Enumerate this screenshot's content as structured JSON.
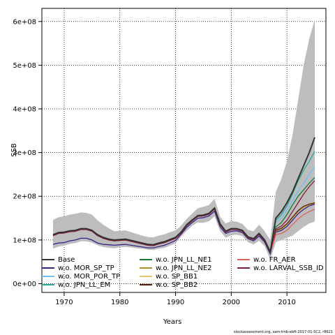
{
  "chart_data": {
    "type": "line",
    "xlabel": "Years",
    "ylabel": "SSB",
    "xlim": [
      1966,
      2017
    ],
    "ylim": [
      -20000000,
      630000000
    ],
    "x_ticks": [
      {
        "value": 1970,
        "label": "1970"
      },
      {
        "value": 1980,
        "label": "1980"
      },
      {
        "value": 1990,
        "label": "1990"
      },
      {
        "value": 2000,
        "label": "2000"
      },
      {
        "value": 2010,
        "label": "2010"
      }
    ],
    "y_ticks": [
      {
        "value": 0,
        "label": "0e+00"
      },
      {
        "value": 100000000,
        "label": "1e+08"
      },
      {
        "value": 200000000,
        "label": "2e+08"
      },
      {
        "value": 300000000,
        "label": "3e+08"
      },
      {
        "value": 400000000,
        "label": "4e+08"
      },
      {
        "value": 500000000,
        "label": "5e+08"
      },
      {
        "value": 600000000,
        "label": "6e+08"
      }
    ],
    "grid": true,
    "legend_position": "bottom-inside",
    "years": [
      1968,
      1969,
      1970,
      1971,
      1972,
      1973,
      1974,
      1975,
      1976,
      1977,
      1978,
      1979,
      1980,
      1981,
      1982,
      1983,
      1984,
      1985,
      1986,
      1987,
      1988,
      1989,
      1990,
      1991,
      1992,
      1993,
      1994,
      1995,
      1996,
      1997,
      1998,
      1999,
      2000,
      2001,
      2002,
      2003,
      2004,
      2005,
      2006,
      2007,
      2008,
      2009,
      2010,
      2011,
      2012,
      2013,
      2014,
      2015
    ],
    "confidence_band": {
      "color": "#bdbdbd",
      "upper": [
        146,
        152,
        154,
        158,
        160,
        163,
        162,
        158,
        145,
        135,
        127,
        120,
        121,
        122,
        118,
        114,
        110,
        107,
        106,
        110,
        113,
        118,
        122,
        133,
        148,
        161,
        173,
        176,
        180,
        194,
        153,
        138,
        143,
        142,
        137,
        123,
        120,
        135,
        120,
        100,
        210,
        240,
        280,
        340,
        420,
        500,
        560,
        605
      ],
      "lower": [
        80,
        85,
        87,
        91,
        93,
        97,
        97,
        94,
        88,
        84,
        82,
        81,
        83,
        84,
        83,
        81,
        80,
        78,
        77,
        80,
        82,
        87,
        92,
        108,
        121,
        133,
        140,
        139,
        143,
        154,
        120,
        105,
        111,
        112,
        109,
        95,
        90,
        98,
        86,
        55,
        95,
        100,
        105,
        110,
        120,
        130,
        138,
        142
      ]
    },
    "series": [
      {
        "name": "Base",
        "color": "#333333",
        "values": [
          112,
          117,
          118,
          121,
          122,
          126,
          126,
          122,
          112,
          106,
          102,
          100,
          101,
          102,
          99,
          96,
          93,
          90,
          89,
          93,
          96,
          101,
          106,
          118,
          135,
          146,
          156,
          157,
          161,
          173,
          137,
          120,
          126,
          126,
          122,
          107,
          103,
          115,
          100,
          73,
          150,
          165,
          185,
          210,
          240,
          270,
          300,
          335
        ]
      },
      {
        "name": "w.o. MOR_SP_TP",
        "color": "#3b1f8a",
        "values": [
          90,
          93,
          94,
          98,
          100,
          104,
          104,
          100,
          93,
          90,
          89,
          88,
          89,
          90,
          88,
          86,
          84,
          82,
          82,
          85,
          88,
          93,
          99,
          113,
          129,
          140,
          150,
          151,
          155,
          166,
          130,
          115,
          120,
          121,
          117,
          103,
          98,
          109,
          95,
          68,
          118,
          122,
          131,
          145,
          160,
          170,
          178,
          182
        ]
      },
      {
        "name": "w.o. MOR_POR_TP",
        "color": "#6fc1f0",
        "values": [
          111,
          116,
          117,
          120,
          121,
          125,
          125,
          121,
          111,
          105,
          101,
          99,
          100,
          101,
          98,
          95,
          92,
          89,
          88,
          92,
          95,
          100,
          105,
          117,
          134,
          145,
          155,
          156,
          160,
          172,
          136,
          119,
          125,
          125,
          121,
          106,
          102,
          114,
          99,
          72,
          140,
          150,
          168,
          190,
          212,
          230,
          250,
          268
        ]
      },
      {
        "name": "w.o. JPN_LL_EM",
        "color": "#2aa89a",
        "values": [
          110,
          115,
          116,
          119,
          120,
          124,
          124,
          120,
          110,
          104,
          100,
          98,
          99,
          100,
          97,
          94,
          91,
          88,
          87,
          91,
          94,
          99,
          104,
          116,
          133,
          144,
          154,
          155,
          159,
          171,
          135,
          118,
          124,
          124,
          120,
          105,
          101,
          113,
          98,
          71,
          145,
          158,
          178,
          205,
          235,
          260,
          280,
          303
        ]
      },
      {
        "name": "w.o. JPN_LL_NE1",
        "color": "#1a7a2e",
        "values": [
          111,
          116,
          117,
          120,
          121,
          125,
          125,
          121,
          111,
          105,
          101,
          99,
          100,
          101,
          98,
          95,
          92,
          89,
          88,
          92,
          95,
          100,
          105,
          117,
          134,
          145,
          155,
          156,
          160,
          172,
          136,
          119,
          125,
          125,
          121,
          106,
          102,
          114,
          99,
          72,
          130,
          140,
          158,
          180,
          200,
          215,
          230,
          243
        ]
      },
      {
        "name": "w.o. JPN_LL_NE2",
        "color": "#a89020",
        "values": [
          110,
          115,
          116,
          119,
          120,
          124,
          124,
          120,
          110,
          104,
          100,
          98,
          99,
          100,
          97,
          94,
          91,
          88,
          87,
          91,
          94,
          99,
          104,
          116,
          133,
          144,
          154,
          155,
          159,
          171,
          135,
          118,
          124,
          124,
          120,
          105,
          101,
          113,
          98,
          71,
          120,
          125,
          135,
          150,
          165,
          175,
          180,
          185
        ]
      },
      {
        "name": "w.o. SP_BB1",
        "color": "#e8c86a",
        "values": [
          111,
          116,
          117,
          120,
          121,
          125,
          125,
          121,
          111,
          105,
          101,
          99,
          100,
          101,
          98,
          95,
          92,
          89,
          88,
          92,
          95,
          100,
          105,
          117,
          134,
          145,
          155,
          156,
          160,
          172,
          136,
          119,
          125,
          125,
          121,
          106,
          102,
          114,
          99,
          72,
          121,
          126,
          136,
          151,
          166,
          176,
          181,
          186
        ]
      },
      {
        "name": "w.o. SP_BB2",
        "color": "#5a1a0a",
        "values": [
          110,
          115,
          116,
          119,
          120,
          124,
          124,
          120,
          110,
          104,
          100,
          98,
          99,
          100,
          97,
          94,
          91,
          88,
          87,
          91,
          94,
          99,
          104,
          116,
          133,
          144,
          154,
          155,
          159,
          171,
          135,
          118,
          124,
          124,
          120,
          105,
          101,
          113,
          98,
          71,
          122,
          127,
          137,
          152,
          167,
          177,
          182,
          185
        ]
      },
      {
        "name": "w.o. FR_AER",
        "color": "#e06060",
        "values": [
          110,
          115,
          116,
          119,
          120,
          124,
          124,
          120,
          110,
          104,
          100,
          98,
          99,
          100,
          97,
          94,
          91,
          88,
          87,
          91,
          94,
          99,
          104,
          116,
          133,
          144,
          154,
          155,
          159,
          171,
          135,
          118,
          124,
          124,
          120,
          105,
          101,
          113,
          98,
          71,
          112,
          115,
          122,
          135,
          148,
          158,
          165,
          170
        ]
      },
      {
        "name": "w.o. LARVAL_SSB_ID",
        "color": "#8a1a3a",
        "values": [
          110,
          115,
          116,
          119,
          120,
          124,
          124,
          120,
          110,
          104,
          100,
          98,
          99,
          100,
          97,
          94,
          91,
          88,
          87,
          91,
          94,
          99,
          104,
          116,
          133,
          144,
          154,
          155,
          159,
          171,
          135,
          118,
          124,
          124,
          120,
          105,
          101,
          113,
          98,
          71,
          125,
          132,
          145,
          165,
          185,
          205,
          222,
          236
        ]
      }
    ],
    "values_unit_multiplier": 1000000
  },
  "credit": "stockassessment.org, sam-tmb-ebft-2017-01-SC2, r8621"
}
